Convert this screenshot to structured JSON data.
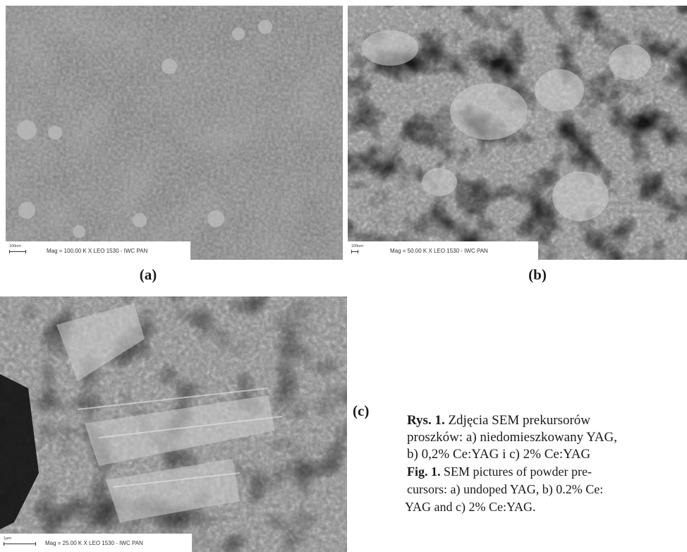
{
  "figure": {
    "panels": [
      {
        "label": "(a)",
        "scale_text": "100nm",
        "info_text": "Mag = 100.00 K X   LEO 1530 - IWC PAN"
      },
      {
        "label": "(b)",
        "scale_text": "100nm",
        "info_text": "Mag =  50.00 K X   LEO 1530 - IWC PAN"
      },
      {
        "label": "(c)",
        "scale_text": "1µm",
        "info_text": "Mag =  25.00 K X   LEO 1530 - IWC PAN"
      }
    ],
    "caption_pl": {
      "prefix": "Rys. 1.",
      "lines": [
        " Zdjęcia SEM prekursorów",
        "proszków: a) niedomieszkowany YAG,",
        "b) 0,2% Ce:YAG i c) 2% Ce:YAG"
      ]
    },
    "caption_en": {
      "prefix": "Fig. 1.",
      "lines": [
        " SEM pictures of powder pre-",
        "cursors: a) undoped YAG, b) 0.2% Ce:",
        "YAG and c) 2% Ce:YAG."
      ]
    }
  }
}
